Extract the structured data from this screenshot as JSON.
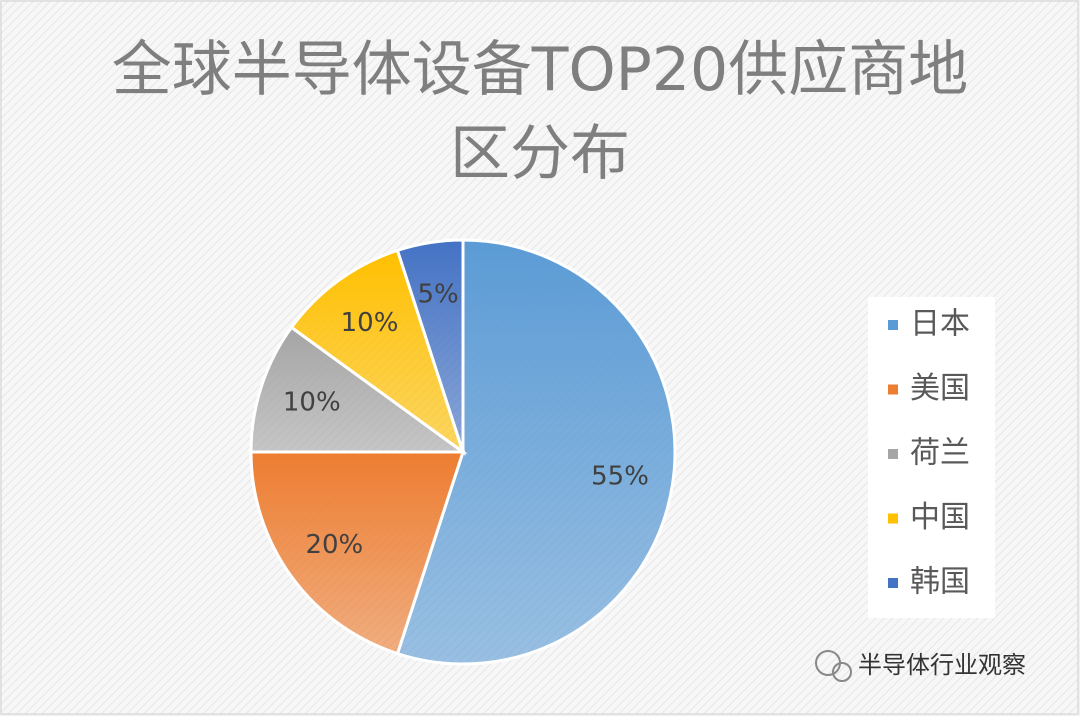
{
  "chart_data": {
    "type": "pie",
    "title": "全球半导体设备TOP20供应商地区分布",
    "categories": [
      "日本",
      "美国",
      "荷兰",
      "中国",
      "韩国"
    ],
    "values": [
      55,
      20,
      10,
      10,
      5
    ],
    "value_labels": [
      "55%",
      "20%",
      "10%",
      "10%",
      "5%"
    ],
    "colors": [
      "#5b9bd5",
      "#ed7d31",
      "#a5a5a5",
      "#ffc000",
      "#4472c4"
    ],
    "legend": "right"
  },
  "watermark": "半导体行业观察"
}
